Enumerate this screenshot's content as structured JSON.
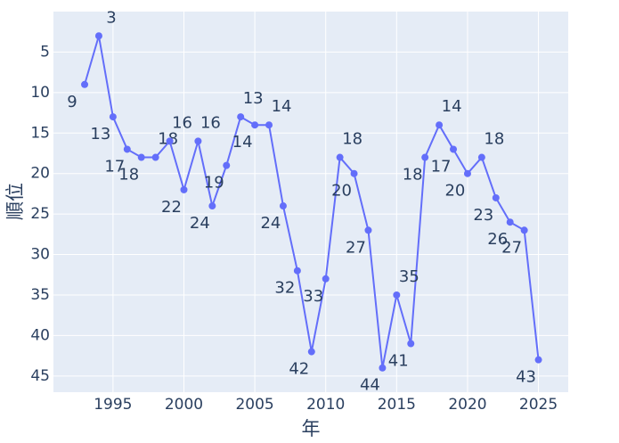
{
  "chart_data": {
    "type": "line",
    "x_label": "年",
    "y_label": "順位",
    "x": [
      1993,
      1994,
      1995,
      1996,
      1997,
      1998,
      1999,
      2000,
      2001,
      2002,
      2003,
      2004,
      2005,
      2006,
      2007,
      2008,
      2009,
      2010,
      2011,
      2012,
      2013,
      2014,
      2015,
      2016,
      2017,
      2018,
      2019,
      2020,
      2021,
      2022,
      2023,
      2024,
      2025
    ],
    "values": [
      9,
      3,
      13,
      17,
      18,
      18,
      16,
      22,
      16,
      24,
      19,
      13,
      14,
      14,
      24,
      32,
      42,
      33,
      18,
      20,
      27,
      44,
      35,
      41,
      18,
      14,
      17,
      20,
      18,
      23,
      26,
      27,
      43
    ],
    "color": "#636efa",
    "xlim": [
      1990.8,
      2027.1
    ],
    "xticks": [
      1995,
      2000,
      2005,
      2010,
      2015,
      2020,
      2025
    ],
    "ylim": [
      0,
      47
    ],
    "yticks": [
      5,
      10,
      15,
      20,
      25,
      30,
      35,
      40,
      45
    ],
    "y_reversed": true,
    "grid": true
  }
}
